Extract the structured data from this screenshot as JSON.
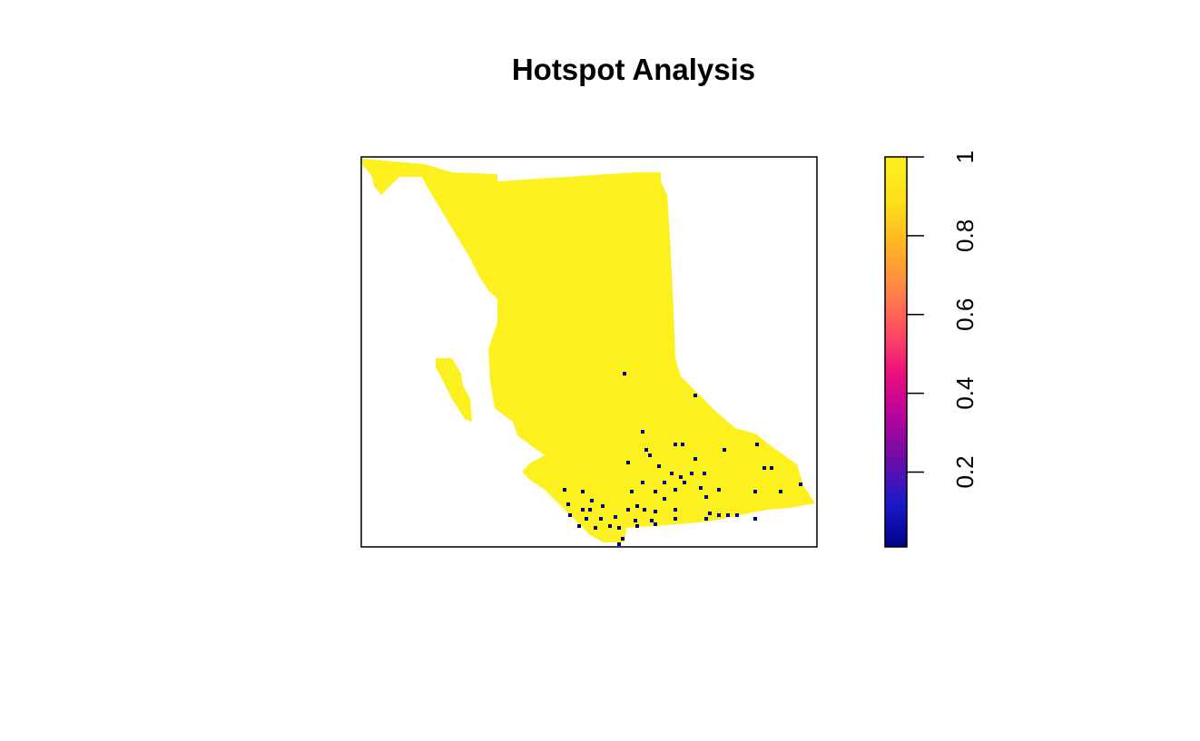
{
  "title": "Hotspot Analysis",
  "map": {
    "fill_color": "#FDF01F",
    "hotspot_color": "#000080",
    "frame_color": "#000000"
  },
  "legend": {
    "ticks": [
      "0.2",
      "0.4",
      "0.6",
      "0.8",
      "1"
    ],
    "tick_values": [
      0.2,
      0.4,
      0.6,
      0.8,
      1.0
    ],
    "range": [
      0.01,
      1.0
    ],
    "palette": [
      "#00008B",
      "#1A1BC9",
      "#6A0CA8",
      "#B5049E",
      "#EE0E7E",
      "#FF4F61",
      "#FF8843",
      "#FFB524",
      "#FDE01A",
      "#FDF01F"
    ]
  },
  "chart_data": {
    "type": "heatmap",
    "title": "Hotspot Analysis",
    "value_range": [
      0.01,
      1.0
    ],
    "colorbar_ticks": [
      0.2,
      0.4,
      0.6,
      0.8,
      1.0
    ],
    "description_values": {
      "background_region_value": 1.0,
      "hotspot_cell_value": 0.01
    }
  }
}
